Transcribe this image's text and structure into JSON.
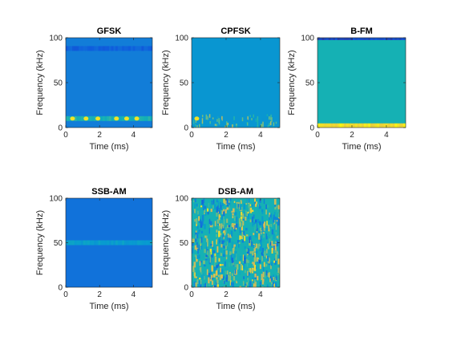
{
  "figure": {
    "background": "#ffffff",
    "axis_color": "#262626",
    "colormap": "parula"
  },
  "chart_data": [
    {
      "type": "heatmap",
      "title": "GFSK",
      "xlabel": "Time (ms)",
      "ylabel": "Frequency (kHz)",
      "xlim": [
        0,
        5.12
      ],
      "ylim": [
        0,
        100
      ],
      "xticks": [
        "0",
        "2",
        "4"
      ],
      "yticks": [
        "0",
        "50",
        "100"
      ],
      "background_level": 0.3,
      "features": [
        {
          "kind": "band",
          "y": 88,
          "level": 0.18,
          "note": "dim band near 88 kHz"
        },
        {
          "kind": "band",
          "y": 10,
          "level": 0.55,
          "note": "bright band near 10 kHz with yellow spots"
        },
        {
          "kind": "spots",
          "y": 10,
          "x": [
            0.4,
            1.2,
            1.9,
            3.0,
            3.6,
            4.2
          ],
          "level": 0.95
        }
      ]
    },
    {
      "type": "heatmap",
      "title": "CPFSK",
      "xlabel": "Time (ms)",
      "ylabel": "Frequency (kHz)",
      "xlim": [
        0,
        5.12
      ],
      "ylim": [
        0,
        100
      ],
      "xticks": [
        "0",
        "2",
        "4"
      ],
      "yticks": [
        "0",
        "50",
        "100"
      ],
      "background_level": 0.42,
      "features": [
        {
          "kind": "noise_band",
          "y_range": [
            0,
            15
          ],
          "level": 0.6
        },
        {
          "kind": "spots",
          "y": 10,
          "x": [
            0.3
          ],
          "level": 0.95
        }
      ]
    },
    {
      "type": "heatmap",
      "title": "B-FM",
      "xlabel": "Time (ms)",
      "ylabel": "Frequency (kHz)",
      "xlim": [
        0,
        5.12
      ],
      "ylim": [
        0,
        100
      ],
      "xticks": [
        "0",
        "2",
        "4"
      ],
      "yticks": [
        "0",
        "50",
        "100"
      ],
      "background_level": 0.55,
      "features": [
        {
          "kind": "band",
          "y": 100,
          "level": 0.1,
          "note": "dark band at top"
        },
        {
          "kind": "band",
          "y": 2,
          "level": 0.95,
          "note": "yellow band near 0 kHz"
        }
      ]
    },
    {
      "type": "heatmap",
      "title": "SSB-AM",
      "xlabel": "Time (ms)",
      "ylabel": "Frequency (kHz)",
      "xlim": [
        0,
        5.12
      ],
      "ylim": [
        0,
        100
      ],
      "xticks": [
        "0",
        "2",
        "4"
      ],
      "yticks": [
        "0",
        "50",
        "100"
      ],
      "background_level": 0.25,
      "features": [
        {
          "kind": "band",
          "y": 50,
          "level": 0.45,
          "note": "faint band at 50 kHz"
        }
      ]
    },
    {
      "type": "heatmap",
      "title": "DSB-AM",
      "xlabel": "Time (ms)",
      "ylabel": "Frequency (kHz)",
      "xlim": [
        0,
        5.12
      ],
      "ylim": [
        0,
        100
      ],
      "xticks": [
        "0",
        "2",
        "4"
      ],
      "yticks": [
        "0",
        "50",
        "100"
      ],
      "background_level": 0.55,
      "features": [
        {
          "kind": "noise_full",
          "level_range": [
            0.2,
            0.95
          ]
        }
      ]
    }
  ]
}
